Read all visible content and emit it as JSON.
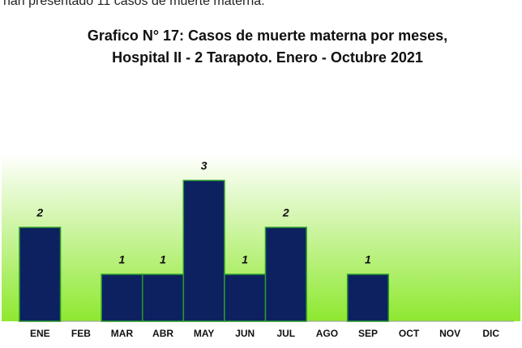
{
  "caption": "han presentado 11 casos de muerte materna.",
  "chart_data": {
    "type": "bar",
    "title": [
      "Grafico N° 17: Casos de muerte materna por meses,",
      "Hospital II - 2 Tarapoto. Enero - Octubre 2021"
    ],
    "categories": [
      "ENE",
      "FEB",
      "MAR",
      "ABR",
      "MAY",
      "JUN",
      "JUL",
      "AGO",
      "SEP",
      "OCT",
      "NOV",
      "DIC"
    ],
    "values": [
      2,
      0,
      1,
      1,
      3,
      1,
      2,
      0,
      1,
      0,
      0,
      0
    ],
    "color": "#0d2160",
    "ylim": [
      0,
      3
    ]
  }
}
